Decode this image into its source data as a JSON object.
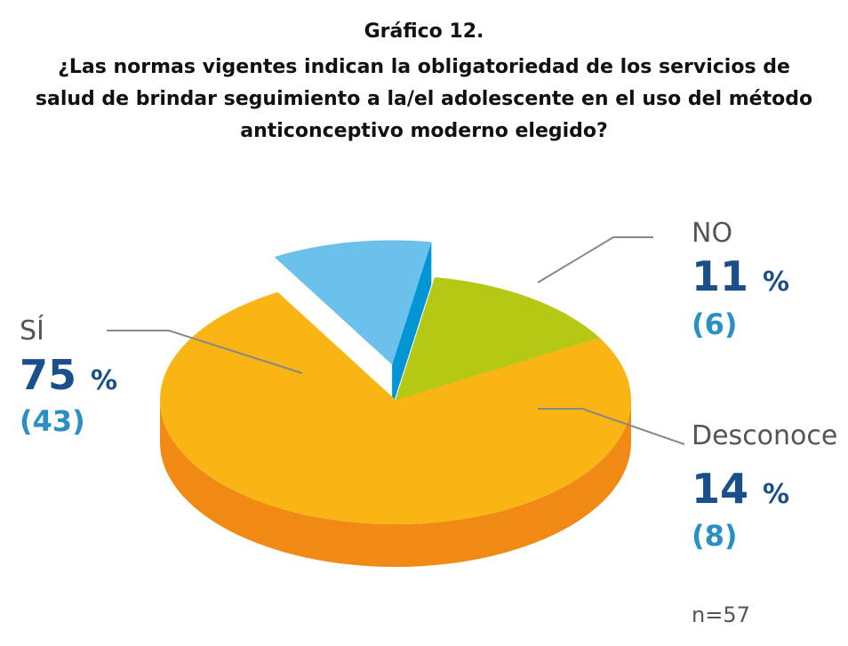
{
  "chart_data": {
    "type": "pie",
    "title": "Gráfico 12.",
    "subtitle": [
      "¿Las normas vigentes indican la obligatoriedad de los servicios de",
      "salud de brindar seguimiento a la/el adolescente en el uso del método",
      "anticonceptivo moderno elegido?"
    ],
    "categories": [
      "SÍ",
      "NO",
      "Desconoce"
    ],
    "values": [
      75,
      11,
      14
    ],
    "value_labels": [
      "75 %",
      "11 %",
      "14 %"
    ],
    "count_labels": [
      "(43)",
      "(6)",
      "(8)"
    ],
    "colors": [
      "#f9b513",
      "#6cc0ec",
      "#b5c914"
    ],
    "side_colors": [
      "#f18a15",
      "#0096d6",
      "#3fa53a"
    ],
    "note": "n=57"
  }
}
